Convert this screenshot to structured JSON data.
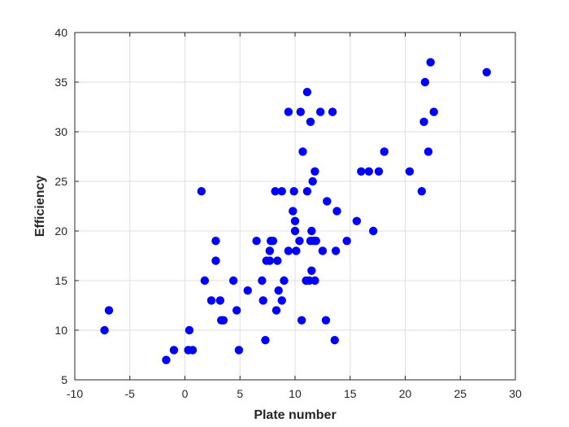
{
  "chart_data": {
    "type": "scatter",
    "title": "",
    "xlabel": "Plate number",
    "ylabel": "Efficiency",
    "xlim": [
      -10,
      30
    ],
    "ylim": [
      5,
      40
    ],
    "xticks": [
      -10,
      -5,
      0,
      5,
      10,
      15,
      20,
      25,
      30
    ],
    "yticks": [
      5,
      10,
      15,
      20,
      25,
      30,
      35,
      40
    ],
    "grid": true,
    "marker_color": "#0000ff",
    "points": [
      [
        -7.3,
        10
      ],
      [
        -6.9,
        12
      ],
      [
        -1.7,
        7
      ],
      [
        -1.0,
        8
      ],
      [
        0.3,
        8
      ],
      [
        0.4,
        10
      ],
      [
        0.7,
        8
      ],
      [
        1.5,
        24
      ],
      [
        1.8,
        15
      ],
      [
        2.4,
        13
      ],
      [
        2.8,
        17
      ],
      [
        2.8,
        19
      ],
      [
        3.2,
        13
      ],
      [
        3.3,
        11
      ],
      [
        3.5,
        11
      ],
      [
        4.4,
        15
      ],
      [
        4.7,
        12
      ],
      [
        4.9,
        8
      ],
      [
        5.7,
        14
      ],
      [
        6.5,
        19
      ],
      [
        7.0,
        15
      ],
      [
        7.1,
        13
      ],
      [
        7.3,
        9
      ],
      [
        7.4,
        17
      ],
      [
        7.7,
        17
      ],
      [
        7.7,
        18
      ],
      [
        7.8,
        19
      ],
      [
        8.0,
        19
      ],
      [
        8.2,
        24
      ],
      [
        8.3,
        12
      ],
      [
        8.4,
        17
      ],
      [
        8.5,
        14
      ],
      [
        8.8,
        24
      ],
      [
        8.8,
        13
      ],
      [
        9.0,
        15
      ],
      [
        9.4,
        18
      ],
      [
        9.4,
        32
      ],
      [
        9.8,
        22
      ],
      [
        9.9,
        24
      ],
      [
        10.0,
        20
      ],
      [
        10.0,
        21
      ],
      [
        10.1,
        18
      ],
      [
        10.4,
        19
      ],
      [
        10.5,
        32
      ],
      [
        10.6,
        11
      ],
      [
        10.7,
        28
      ],
      [
        11.0,
        15
      ],
      [
        11.1,
        24
      ],
      [
        11.1,
        34
      ],
      [
        11.3,
        15
      ],
      [
        11.4,
        19
      ],
      [
        11.4,
        31
      ],
      [
        11.5,
        20
      ],
      [
        11.5,
        16
      ],
      [
        11.6,
        25
      ],
      [
        11.7,
        19
      ],
      [
        11.8,
        15
      ],
      [
        11.8,
        26
      ],
      [
        11.9,
        19
      ],
      [
        12.3,
        32
      ],
      [
        12.5,
        18
      ],
      [
        12.8,
        11
      ],
      [
        12.9,
        23
      ],
      [
        13.4,
        32
      ],
      [
        13.6,
        9
      ],
      [
        13.7,
        18
      ],
      [
        13.8,
        22
      ],
      [
        14.7,
        19
      ],
      [
        15.6,
        21
      ],
      [
        16.0,
        26
      ],
      [
        16.7,
        26
      ],
      [
        17.1,
        20
      ],
      [
        17.6,
        26
      ],
      [
        18.1,
        28
      ],
      [
        20.4,
        26
      ],
      [
        21.5,
        24
      ],
      [
        21.7,
        31
      ],
      [
        21.8,
        35
      ],
      [
        22.1,
        28
      ],
      [
        22.3,
        37
      ],
      [
        22.6,
        32
      ],
      [
        27.4,
        36
      ]
    ]
  }
}
